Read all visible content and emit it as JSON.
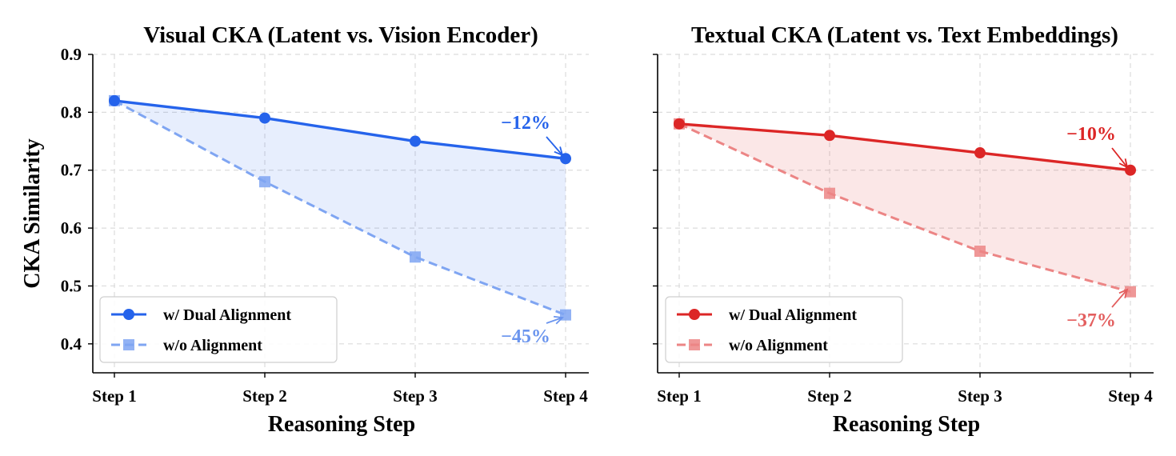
{
  "chart_data": [
    {
      "type": "line",
      "title": "Visual CKA (Latent vs. Vision Encoder)",
      "xlabel": "Reasoning Step",
      "ylabel": "CKA Similarity",
      "categories": [
        "Step 1",
        "Step 2",
        "Step 3",
        "Step 4"
      ],
      "ylim": [
        0.35,
        0.9
      ],
      "yticks": [
        0.4,
        0.5,
        0.6,
        0.7,
        0.8,
        0.9
      ],
      "ytick_labels": [
        "0.4",
        "0.5",
        "0.6",
        "0.7",
        "0.8",
        "0.9"
      ],
      "grid": true,
      "legend_position": "lower-left",
      "fill_between": true,
      "series": [
        {
          "name": "w/ Dual Alignment",
          "values": [
            0.82,
            0.79,
            0.75,
            0.72
          ],
          "color": "#2563eb",
          "style": "solid",
          "marker": "circle"
        },
        {
          "name": "w/o Alignment",
          "values": [
            0.82,
            0.68,
            0.55,
            0.45
          ],
          "color": "#7fa5f2",
          "style": "dashed",
          "marker": "square"
        }
      ],
      "annotations": [
        {
          "text": "−12%",
          "color": "#2563eb",
          "series": 0,
          "point": 3
        },
        {
          "text": "−45%",
          "color": "#6b95ee",
          "series": 1,
          "point": 3
        }
      ]
    },
    {
      "type": "line",
      "title": "Textual CKA (Latent vs. Text Embeddings)",
      "xlabel": "Reasoning Step",
      "ylabel": "",
      "categories": [
        "Step 1",
        "Step 2",
        "Step 3",
        "Step 4"
      ],
      "ylim": [
        0.35,
        0.9
      ],
      "yticks": [
        0.4,
        0.5,
        0.6,
        0.7,
        0.8,
        0.9
      ],
      "ytick_labels": [],
      "grid": true,
      "legend_position": "lower-left",
      "fill_between": true,
      "series": [
        {
          "name": "w/ Dual Alignment",
          "values": [
            0.78,
            0.76,
            0.73,
            0.7
          ],
          "color": "#dc2626",
          "style": "solid",
          "marker": "circle"
        },
        {
          "name": "w/o Alignment",
          "values": [
            0.78,
            0.66,
            0.56,
            0.49
          ],
          "color": "#ec8585",
          "style": "dashed",
          "marker": "square"
        }
      ],
      "annotations": [
        {
          "text": "−10%",
          "color": "#dc2626",
          "series": 0,
          "point": 3
        },
        {
          "text": "−37%",
          "color": "#e35f5f",
          "series": 1,
          "point": 3
        }
      ]
    }
  ]
}
